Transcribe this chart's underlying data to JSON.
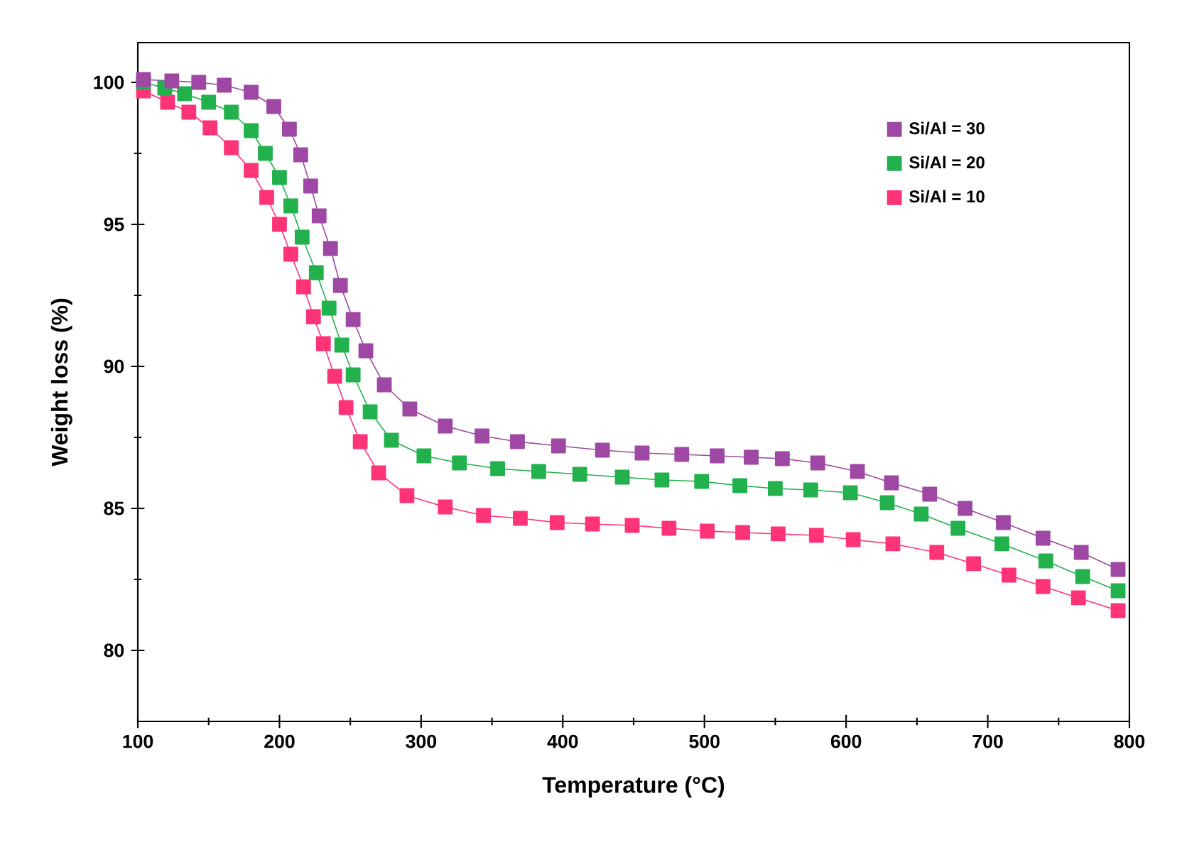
{
  "chart_data": {
    "type": "line",
    "xlabel": "Temperature (°C)",
    "ylabel": "Weight loss (%)",
    "xlim": [
      100,
      800
    ],
    "ylim": [
      77.5,
      101.4
    ],
    "xticks": [
      100,
      200,
      300,
      400,
      500,
      600,
      700,
      800
    ],
    "yticks": [
      80,
      85,
      90,
      95,
      100
    ],
    "legend": "top right",
    "marker": "square",
    "line_style": "solid",
    "series": [
      {
        "name": "Si/Al = 30",
        "color": "#9e47a4",
        "x": [
          104,
          124,
          143,
          161,
          180,
          196,
          207,
          215,
          222,
          228,
          236,
          243,
          252,
          261,
          274,
          292,
          317,
          343,
          368,
          397,
          428,
          456,
          484,
          509,
          533,
          555,
          580,
          608,
          632,
          659,
          684,
          711,
          739,
          766,
          792
        ],
        "values": [
          100.1,
          100.05,
          100,
          99.9,
          99.65,
          99.15,
          98.35,
          97.45,
          96.35,
          95.3,
          94.15,
          92.85,
          91.65,
          90.55,
          89.35,
          88.5,
          87.9,
          87.55,
          87.35,
          87.2,
          87.05,
          86.95,
          86.9,
          86.85,
          86.8,
          86.75,
          86.6,
          86.3,
          85.9,
          85.5,
          85.0,
          84.5,
          83.95,
          83.45,
          82.85
        ]
      },
      {
        "name": "Si/Al = 20",
        "color": "#22b14c",
        "x": [
          104,
          119,
          133,
          150,
          166,
          180,
          190,
          200,
          208,
          216,
          226,
          235,
          244,
          252,
          264,
          279,
          302,
          327,
          354,
          383,
          412,
          442,
          470,
          498,
          525,
          550,
          575,
          603,
          629,
          653,
          679,
          710,
          741,
          767,
          792
        ],
        "values": [
          100.0,
          99.8,
          99.6,
          99.3,
          98.95,
          98.3,
          97.5,
          96.65,
          95.65,
          94.55,
          93.3,
          92.05,
          90.75,
          89.7,
          88.4,
          87.4,
          86.85,
          86.6,
          86.4,
          86.3,
          86.2,
          86.1,
          86.0,
          85.95,
          85.8,
          85.7,
          85.65,
          85.55,
          85.2,
          84.8,
          84.3,
          83.75,
          83.15,
          82.6,
          82.1
        ]
      },
      {
        "name": "Si/Al = 10",
        "color": "#ff3377",
        "x": [
          104,
          121,
          136,
          151,
          166,
          180,
          191,
          200,
          208,
          217,
          224,
          231,
          239,
          247,
          257,
          270,
          290,
          317,
          344,
          370,
          396,
          421,
          449,
          475,
          502,
          527,
          552,
          579,
          605,
          633,
          664,
          690,
          715,
          739,
          764,
          792
        ],
        "values": [
          99.7,
          99.3,
          98.95,
          98.4,
          97.7,
          96.9,
          95.95,
          95.0,
          93.95,
          92.8,
          91.75,
          90.8,
          89.65,
          88.55,
          87.35,
          86.25,
          85.45,
          85.05,
          84.75,
          84.65,
          84.5,
          84.45,
          84.4,
          84.3,
          84.2,
          84.15,
          84.1,
          84.05,
          83.9,
          83.75,
          83.45,
          83.05,
          82.65,
          82.25,
          81.85,
          81.4
        ]
      }
    ]
  }
}
